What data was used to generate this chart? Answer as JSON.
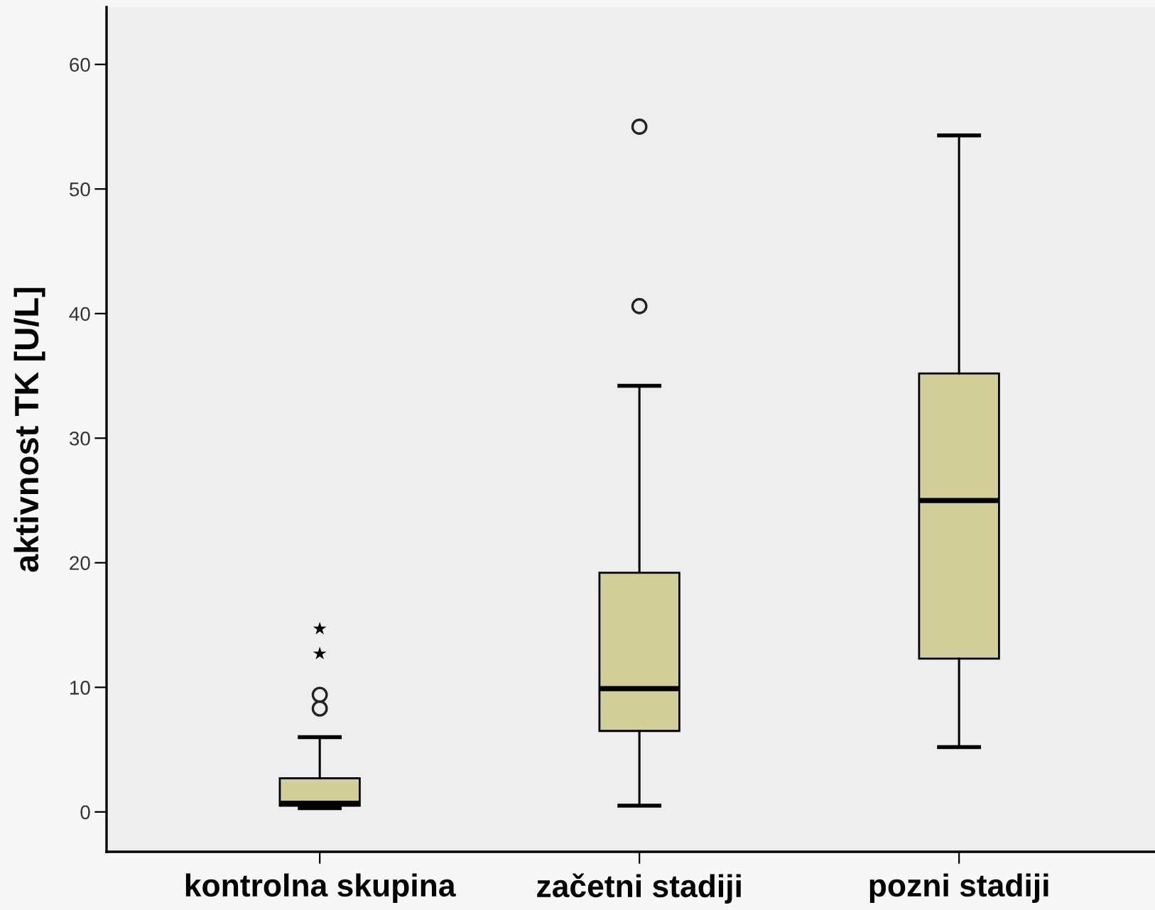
{
  "chart_data": {
    "type": "box",
    "ylabel": "aktivnost TK [U/L]",
    "categories": [
      "kontrolna skupina",
      "začetni stadiji",
      "pozni stadiji"
    ],
    "series": [
      {
        "color": "#d3cf9a",
        "marker": "circle",
        "boxes": [
          {
            "low": 0.3,
            "q1": 0.5,
            "median": 0.7,
            "q3": 2.7,
            "high": 6.0,
            "outliers": [
              8.3,
              9.4
            ]
          },
          {
            "low": 0.5,
            "q1": 6.5,
            "median": 9.9,
            "q3": 19.2,
            "high": 34.2,
            "outliers": [
              40.6,
              55.0
            ]
          },
          {
            "low": 5.2,
            "q1": 12.3,
            "median": 25.0,
            "q3": 35.2,
            "high": 54.3
          }
        ]
      },
      {
        "type": "scatter",
        "color": "#000000",
        "marker": "star",
        "x": [
          "kontrolna skupina",
          "kontrolna skupina"
        ],
        "values": [
          12.7,
          14.7
        ]
      }
    ],
    "ylim": [
      -3.2,
      64.6
    ],
    "yticks": [
      0,
      10,
      20,
      30,
      40,
      50,
      60
    ],
    "grid": false
  }
}
